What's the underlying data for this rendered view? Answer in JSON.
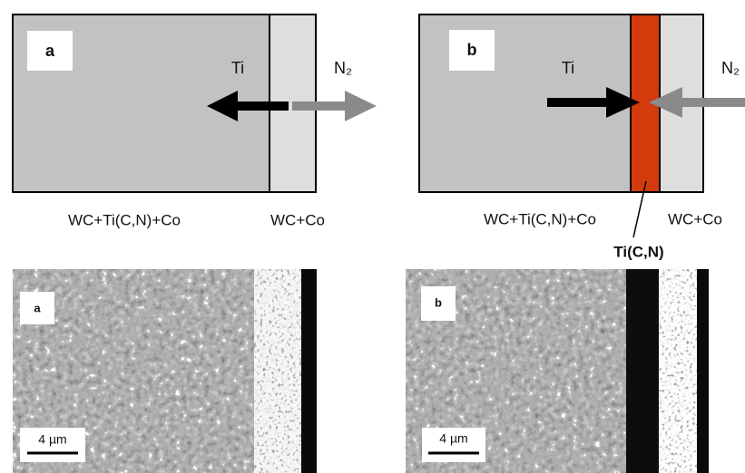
{
  "panel_a": {
    "label": "a",
    "ti": "Ti",
    "n2": "N₂",
    "left_region": "WC+Ti(C,N)+Co",
    "right_region": "WC+Co"
  },
  "panel_b": {
    "label": "b",
    "ti": "Ti",
    "n2": "N₂",
    "left_region": "WC+Ti(C,N)+Co",
    "right_region": "WC+Co",
    "layer": "Ti(C,N)"
  },
  "micrograph_a": {
    "label": "a",
    "scale": "4 µm"
  },
  "micrograph_b": {
    "label": "b",
    "scale": "4 µm"
  }
}
